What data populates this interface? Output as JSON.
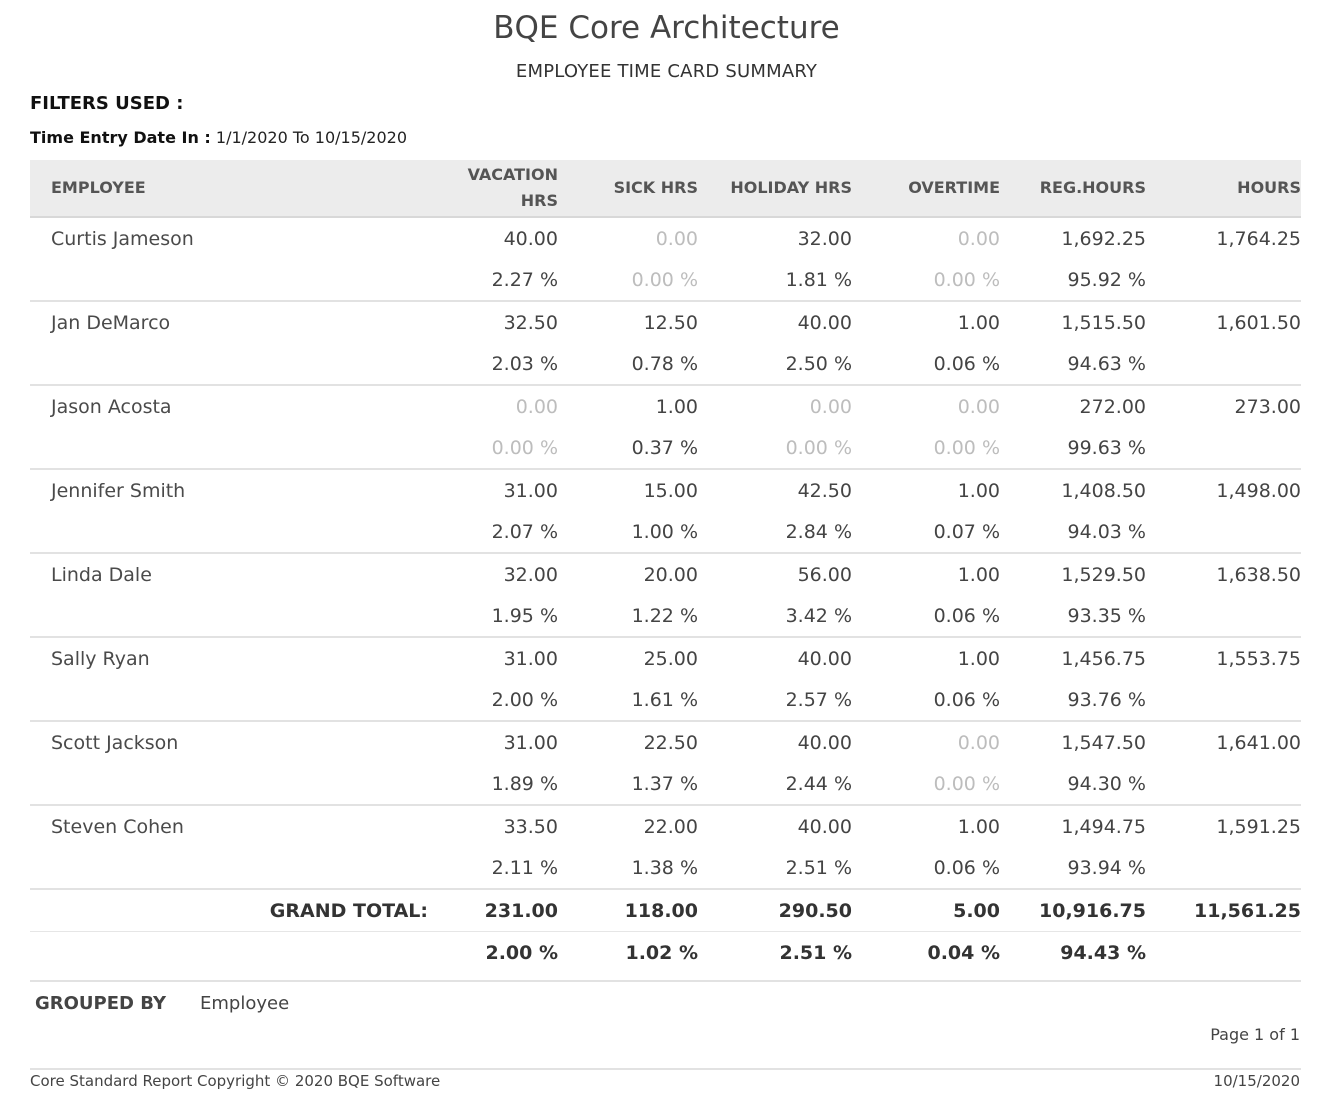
{
  "header": {
    "company": "BQE Core Architecture",
    "report_title": "EMPLOYEE TIME CARD SUMMARY"
  },
  "filters": {
    "title": "FILTERS USED :",
    "label": "Time Entry Date In :",
    "value": "1/1/2020 To 10/15/2020"
  },
  "columns": [
    "EMPLOYEE",
    "VACATION HRS",
    "SICK HRS",
    "HOLIDAY HRS",
    "OVERTIME",
    "REG.HOURS",
    "HOURS"
  ],
  "employees": [
    {
      "name": "Curtis Jameson",
      "hours": [
        "40.00",
        "0.00",
        "32.00",
        "0.00",
        "1,692.25",
        "1,764.25"
      ],
      "pcts": [
        "2.27 %",
        "0.00 %",
        "1.81 %",
        "0.00 %",
        "95.92 %"
      ]
    },
    {
      "name": "Jan DeMarco",
      "hours": [
        "32.50",
        "12.50",
        "40.00",
        "1.00",
        "1,515.50",
        "1,601.50"
      ],
      "pcts": [
        "2.03 %",
        "0.78 %",
        "2.50 %",
        "0.06 %",
        "94.63 %"
      ]
    },
    {
      "name": "Jason Acosta",
      "hours": [
        "0.00",
        "1.00",
        "0.00",
        "0.00",
        "272.00",
        "273.00"
      ],
      "pcts": [
        "0.00 %",
        "0.37 %",
        "0.00 %",
        "0.00 %",
        "99.63 %"
      ]
    },
    {
      "name": "Jennifer Smith",
      "hours": [
        "31.00",
        "15.00",
        "42.50",
        "1.00",
        "1,408.50",
        "1,498.00"
      ],
      "pcts": [
        "2.07 %",
        "1.00 %",
        "2.84 %",
        "0.07 %",
        "94.03 %"
      ]
    },
    {
      "name": "Linda Dale",
      "hours": [
        "32.00",
        "20.00",
        "56.00",
        "1.00",
        "1,529.50",
        "1,638.50"
      ],
      "pcts": [
        "1.95 %",
        "1.22 %",
        "3.42 %",
        "0.06 %",
        "93.35 %"
      ]
    },
    {
      "name": "Sally Ryan",
      "hours": [
        "31.00",
        "25.00",
        "40.00",
        "1.00",
        "1,456.75",
        "1,553.75"
      ],
      "pcts": [
        "2.00 %",
        "1.61 %",
        "2.57 %",
        "0.06 %",
        "93.76 %"
      ]
    },
    {
      "name": "Scott Jackson",
      "hours": [
        "31.00",
        "22.50",
        "40.00",
        "0.00",
        "1,547.50",
        "1,641.00"
      ],
      "pcts": [
        "1.89 %",
        "1.37 %",
        "2.44 %",
        "0.00 %",
        "94.30 %"
      ]
    },
    {
      "name": "Steven Cohen",
      "hours": [
        "33.50",
        "22.00",
        "40.00",
        "1.00",
        "1,494.75",
        "1,591.25"
      ],
      "pcts": [
        "2.11 %",
        "1.38 %",
        "2.51 %",
        "0.06 %",
        "93.94 %"
      ]
    }
  ],
  "grand_total": {
    "label": "GRAND TOTAL:",
    "hours": [
      "231.00",
      "118.00",
      "290.50",
      "5.00",
      "10,916.75",
      "11,561.25"
    ],
    "pcts": [
      "2.00 %",
      "1.02 %",
      "2.51 %",
      "0.04 %",
      "94.43 %"
    ]
  },
  "footer": {
    "grouped_by_label": "GROUPED BY",
    "grouped_by_value": "Employee",
    "page": "Page 1 of 1",
    "copyright": "Core Standard Report Copyright © 2020 BQE Software",
    "date": "10/15/2020"
  },
  "colors": {
    "header_bg": "#ececec",
    "zero_value": "#bdbdbd",
    "text": "#444444"
  }
}
